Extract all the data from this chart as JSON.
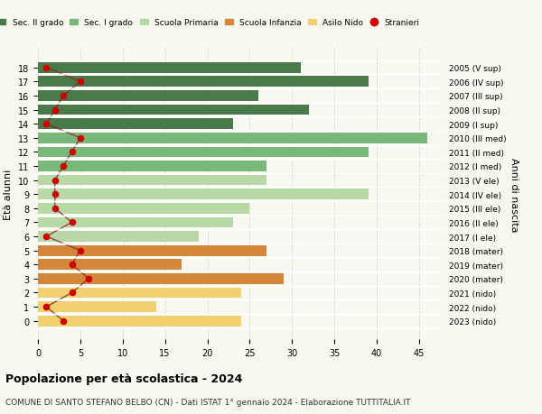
{
  "ages": [
    18,
    17,
    16,
    15,
    14,
    13,
    12,
    11,
    10,
    9,
    8,
    7,
    6,
    5,
    4,
    3,
    2,
    1,
    0
  ],
  "bar_values": [
    31,
    39,
    26,
    32,
    23,
    46,
    39,
    27,
    27,
    39,
    25,
    23,
    19,
    27,
    17,
    29,
    24,
    14,
    24
  ],
  "bar_colors": [
    "#4a7a4a",
    "#4a7a4a",
    "#4a7a4a",
    "#4a7a4a",
    "#4a7a4a",
    "#7ab87a",
    "#7ab87a",
    "#7ab87a",
    "#b8d8a8",
    "#b8d8a8",
    "#b8d8a8",
    "#b8d8a8",
    "#b8d8a8",
    "#d4873a",
    "#d4873a",
    "#d4873a",
    "#f0d070",
    "#f0d070",
    "#f0d070"
  ],
  "stranieri": [
    1,
    5,
    3,
    2,
    1,
    5,
    4,
    3,
    2,
    2,
    2,
    4,
    1,
    5,
    4,
    6,
    4,
    1,
    3
  ],
  "right_labels": [
    "2005 (V sup)",
    "2006 (IV sup)",
    "2007 (III sup)",
    "2008 (II sup)",
    "2009 (I sup)",
    "2010 (III med)",
    "2011 (II med)",
    "2012 (I med)",
    "2013 (V ele)",
    "2014 (IV ele)",
    "2015 (III ele)",
    "2016 (II ele)",
    "2017 (I ele)",
    "2018 (mater)",
    "2019 (mater)",
    "2020 (mater)",
    "2021 (nido)",
    "2022 (nido)",
    "2023 (nido)"
  ],
  "legend_labels": [
    "Sec. II grado",
    "Sec. I grado",
    "Scuola Primaria",
    "Scuola Infanzia",
    "Asilo Nido",
    "Stranieri"
  ],
  "legend_colors": [
    "#4a7a4a",
    "#7ab87a",
    "#b8d8a8",
    "#d4873a",
    "#f0d070",
    "#cc0000"
  ],
  "xlabel": "",
  "ylabel": "Età alunni",
  "right_ylabel": "Anni di nascita",
  "title": "Popolazione per età scolastica - 2024",
  "subtitle": "COMUNE DI SANTO STEFANO BELBO (CN) - Dati ISTAT 1° gennaio 2024 - Elaborazione TUTTITALIA.IT",
  "xlim": [
    0,
    48
  ],
  "xticks": [
    0,
    5,
    10,
    15,
    20,
    25,
    30,
    35,
    40,
    45
  ],
  "bg_color": "#f8f8f0",
  "bar_bg_color": "#ececec",
  "stranieri_color": "#cc0000",
  "stranieri_line_color": "#8b2020"
}
